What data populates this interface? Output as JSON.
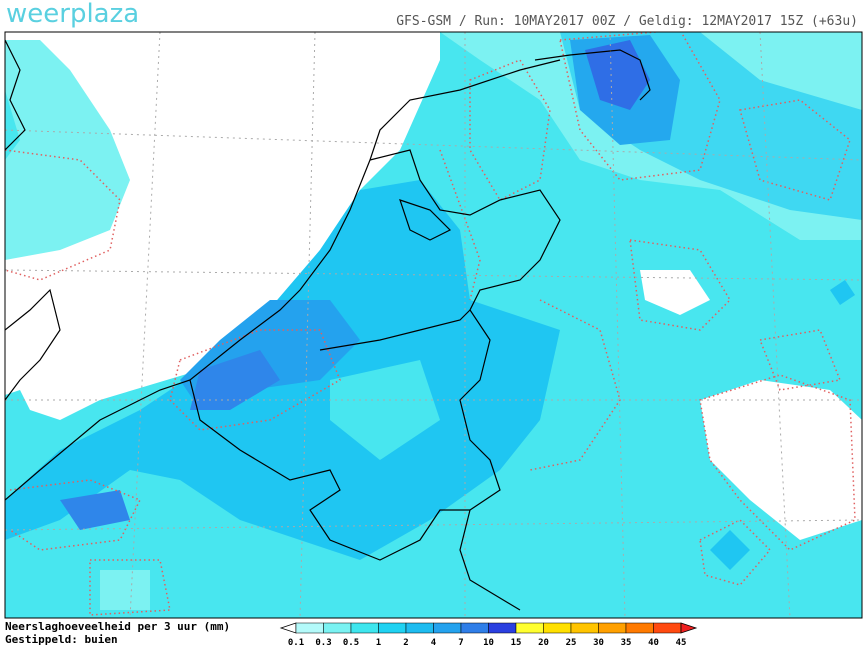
{
  "header": {
    "logo": "weerplaza",
    "run_info": "GFS-GSM / Run: 10MAY2017 00Z / Geldig: 12MAY2017 15Z (+63u)"
  },
  "legend": {
    "title": "Neerslaghoeveelheid per 3 uur (mm)",
    "note": "Gestippeld: buien",
    "scale": [
      0.1,
      0.3,
      0.5,
      1,
      2,
      4,
      7,
      10,
      15,
      20,
      25,
      30,
      35,
      40,
      45
    ],
    "colors": [
      "#ffffff",
      "#b4fafa",
      "#7af2f2",
      "#3ee6ee",
      "#1fd2f2",
      "#1ebcf0",
      "#24a2ee",
      "#2f7ee8",
      "#2a3fe0",
      "#ffff30",
      "#ffe000",
      "#ffc400",
      "#ffa000",
      "#ff7a00",
      "#ff4a10",
      "#f02020"
    ]
  }
}
